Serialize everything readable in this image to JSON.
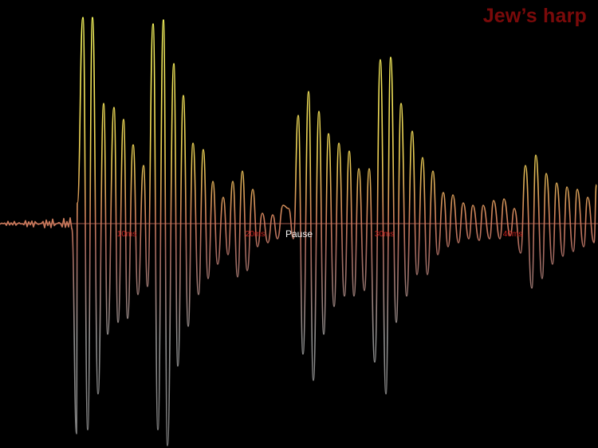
{
  "title": "Jew’s harp",
  "pause_label": "Pause",
  "axis": {
    "ticks": [
      {
        "label": "10ms"
      },
      {
        "label": "20ms"
      },
      {
        "label": "30ms"
      },
      {
        "label": "40ms"
      }
    ]
  },
  "colors": {
    "background": "#000000",
    "title": "#7a0a0a",
    "tick_label": "#c8201e",
    "wave_top": "#ffff5a",
    "wave_mid": "#c8705a",
    "wave_bottom": "#8a8a8a",
    "baseline": "#c87060"
  }
}
